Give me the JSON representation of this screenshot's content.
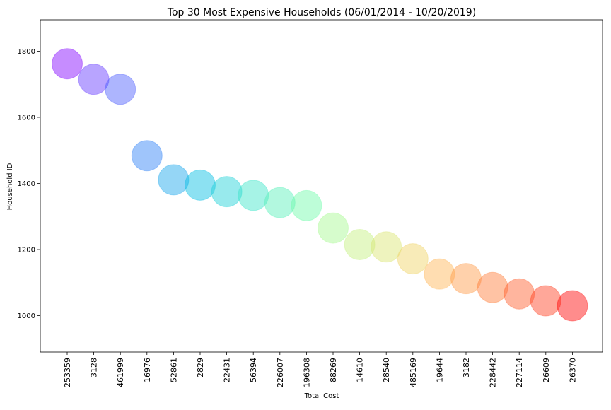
{
  "chart_data": {
    "type": "scatter",
    "title": "Top 30 Most Expensive Households (06/01/2014 - 10/20/2019)",
    "xlabel": "Total Cost",
    "ylabel": "Household ID",
    "categories": [
      "253359",
      "3128",
      "461999",
      "16976",
      "52861",
      "2829",
      "22431",
      "56394",
      "226007",
      "196308",
      "88269",
      "14610",
      "28540",
      "485169",
      "19644",
      "3182",
      "228442",
      "227114",
      "26609",
      "26370"
    ],
    "values": [
      1762,
      1715,
      1685,
      1484,
      1411,
      1395,
      1375,
      1364,
      1342,
      1333,
      1265,
      1215,
      1208,
      1172,
      1126,
      1112,
      1085,
      1066,
      1045,
      1030
    ],
    "yticks": [
      1000,
      1200,
      1400,
      1600,
      1800
    ],
    "ylim": [
      890,
      1895
    ],
    "grid": false,
    "colors": [
      "#8000ff",
      "#6236fe",
      "#4a5afc",
      "#2a7ff6",
      "#14a3ec",
      "#00bde3",
      "#1ad1d6",
      "#3ae4c8",
      "#54f0b8",
      "#6dfba8",
      "#a5f98d",
      "#c3f07d",
      "#d9e46f",
      "#efd261",
      "#ffb453",
      "#ff9944",
      "#ff7b35",
      "#ff5a29",
      "#ff3b1c",
      "#ff0000"
    ]
  }
}
